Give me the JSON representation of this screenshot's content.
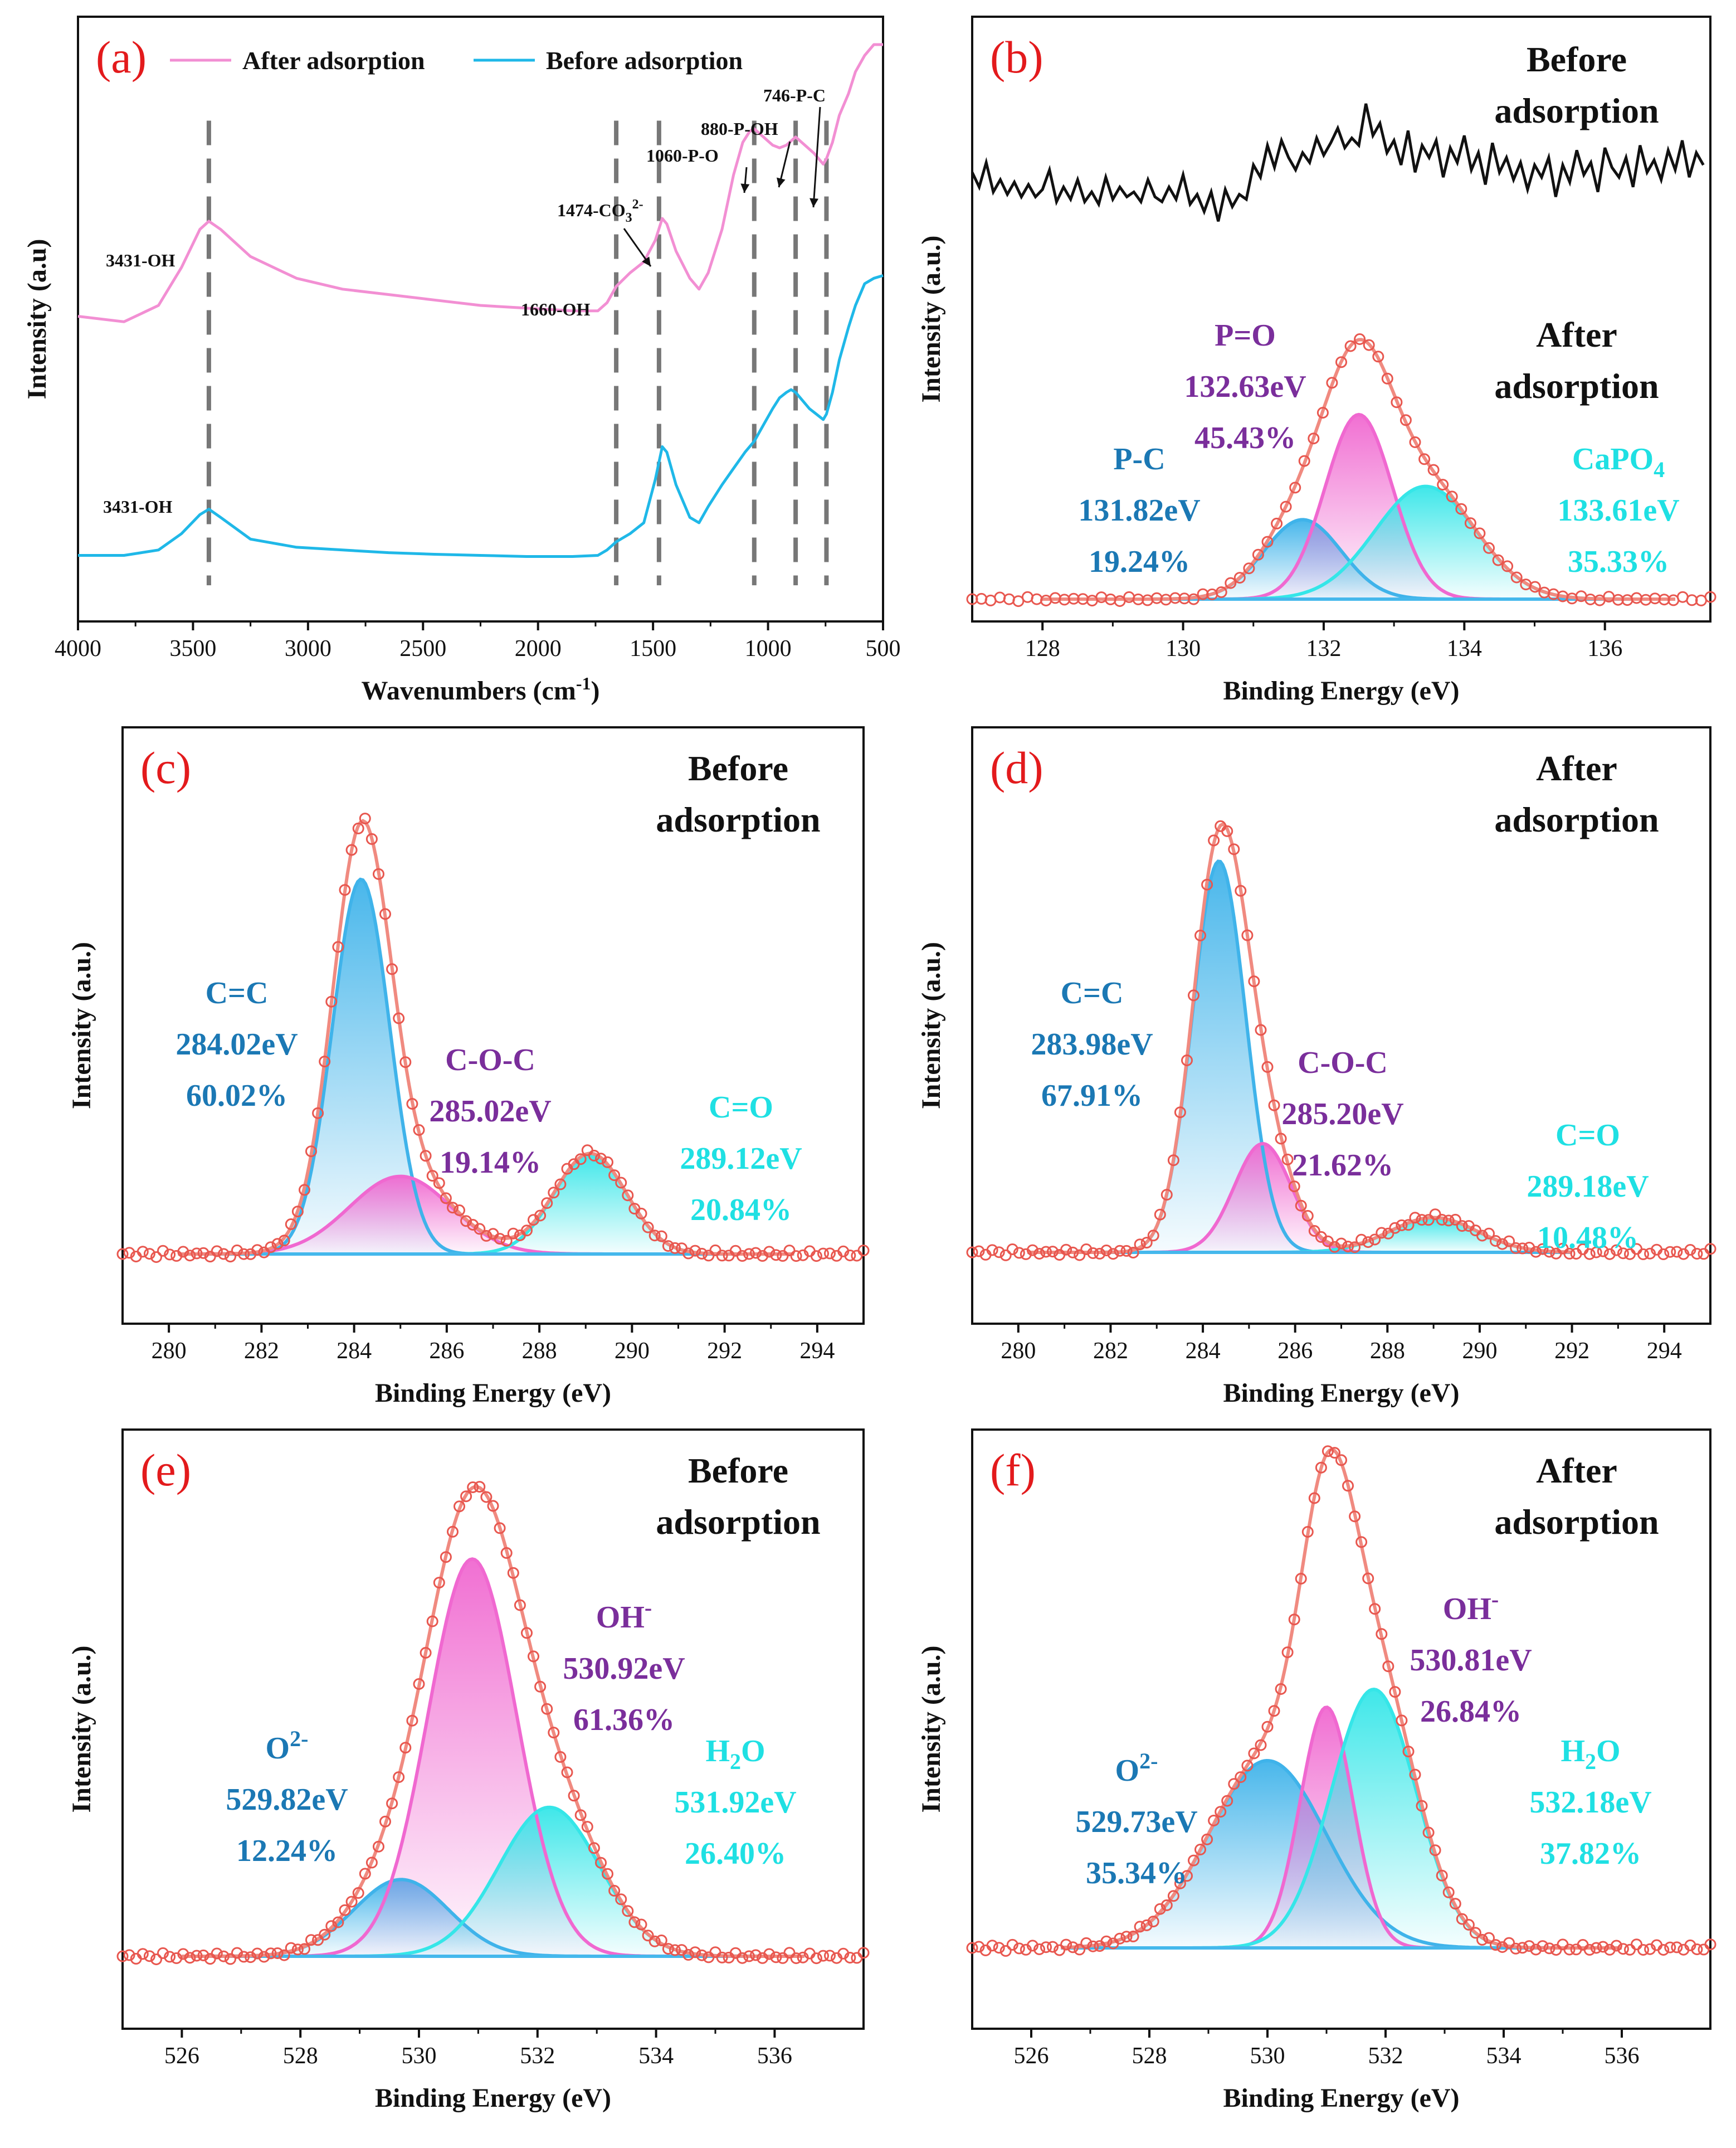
{
  "colors": {
    "panel_label": "#e31a1c",
    "envelope": "#f08a80",
    "marker": "#e8574f",
    "ftir_after": "#f28fd3",
    "ftir_before": "#1fb8e8",
    "before_raw": "#111111",
    "blue_component": "#3fb3ea",
    "pink_component": "#f068d0",
    "cyan_component": "#35e6e8",
    "blue_text": "#1b78b4",
    "purple_text": "#7a2e9b",
    "cyan_text": "#1fe0e3",
    "baseline": "#45b8ec",
    "dashed": "#777777"
  },
  "chart_data": [
    {
      "id": "a",
      "type": "line",
      "panel_label": "(a)",
      "xlabel": "Wavenumbers (cm",
      "xlabel_sup": "-1",
      "xlabel_end": ")",
      "ylabel": "Intensity (a.u)",
      "xlim": [
        4000,
        500
      ],
      "x_ticks": [
        4000,
        3500,
        3000,
        2500,
        2000,
        1500,
        1000,
        500
      ],
      "legend": [
        {
          "name": "After adsorption",
          "color": "#f28fd3"
        },
        {
          "name": "Before adsorption",
          "color": "#1fb8e8"
        }
      ],
      "series": [
        {
          "name": "After adsorption",
          "color": "#f28fd3",
          "x": [
            4000,
            3800,
            3650,
            3550,
            3470,
            3431,
            3380,
            3250,
            3050,
            2850,
            2650,
            2450,
            2250,
            2050,
            1850,
            1740,
            1700,
            1660,
            1600,
            1540,
            1490,
            1460,
            1440,
            1400,
            1340,
            1300,
            1260,
            1200,
            1150,
            1110,
            1080,
            1060,
            1020,
            980,
            950,
            920,
            880,
            840,
            800,
            780,
            760,
            746,
            720,
            690,
            650,
            620,
            580,
            540,
            500
          ],
          "y": [
            0.5,
            0.49,
            0.52,
            0.59,
            0.66,
            0.675,
            0.66,
            0.61,
            0.57,
            0.55,
            0.54,
            0.53,
            0.52,
            0.515,
            0.51,
            0.51,
            0.525,
            0.555,
            0.58,
            0.6,
            0.64,
            0.68,
            0.67,
            0.62,
            0.57,
            0.55,
            0.58,
            0.66,
            0.76,
            0.82,
            0.84,
            0.845,
            0.83,
            0.815,
            0.81,
            0.815,
            0.83,
            0.815,
            0.8,
            0.79,
            0.78,
            0.79,
            0.82,
            0.87,
            0.91,
            0.95,
            0.98,
            1.0,
            1.0
          ]
        },
        {
          "name": "Before adsorption",
          "color": "#1fb8e8",
          "x": [
            4000,
            3800,
            3650,
            3550,
            3470,
            3431,
            3380,
            3250,
            3050,
            2850,
            2650,
            2450,
            2250,
            2050,
            1850,
            1740,
            1700,
            1660,
            1600,
            1540,
            1490,
            1460,
            1440,
            1400,
            1340,
            1300,
            1260,
            1200,
            1150,
            1100,
            1060,
            1020,
            980,
            950,
            920,
            900,
            880,
            850,
            820,
            790,
            760,
            746,
            720,
            690,
            650,
            620,
            580,
            540,
            500
          ],
          "y": [
            0.06,
            0.06,
            0.07,
            0.1,
            0.135,
            0.145,
            0.13,
            0.09,
            0.075,
            0.07,
            0.065,
            0.062,
            0.06,
            0.058,
            0.058,
            0.06,
            0.07,
            0.085,
            0.1,
            0.12,
            0.2,
            0.26,
            0.25,
            0.19,
            0.13,
            0.12,
            0.15,
            0.19,
            0.22,
            0.25,
            0.27,
            0.3,
            0.33,
            0.35,
            0.36,
            0.365,
            0.36,
            0.345,
            0.33,
            0.32,
            0.31,
            0.32,
            0.36,
            0.42,
            0.48,
            0.52,
            0.56,
            0.57,
            0.575
          ]
        }
      ],
      "dashed_lines": [
        3431,
        1660,
        1474,
        1060,
        880,
        746
      ],
      "annotations": [
        {
          "text": "3431-OH",
          "x": 3431,
          "series": "After adsorption"
        },
        {
          "text": "3431-OH",
          "x": 3431,
          "series": "Before adsorption"
        },
        {
          "text": "1660-OH",
          "x": 1660
        },
        {
          "text": "1474-CO",
          "sub": "3",
          "sup": "2-",
          "x": 1474
        },
        {
          "text": "1060-P-O",
          "x": 1060
        },
        {
          "text": "880-P-OH",
          "x": 880
        },
        {
          "text": "746-P-C",
          "x": 746
        }
      ]
    },
    {
      "id": "b",
      "type": "line",
      "panel_label": "(b)",
      "xlabel": "Binding Energy (eV)",
      "ylabel": "Intensity (a.u.)",
      "xlim": [
        127,
        137.5
      ],
      "x_ticks": [
        128,
        130,
        132,
        134,
        136
      ],
      "state_before": [
        "Before",
        "adsorption"
      ],
      "state_after": [
        "After",
        "adsorption"
      ],
      "raw_before": {
        "x": [
          127.0,
          127.1,
          127.2,
          127.3,
          127.4,
          127.5,
          127.6,
          127.7,
          127.8,
          127.9,
          128.0,
          128.1,
          128.2,
          128.3,
          128.4,
          128.5,
          128.6,
          128.7,
          128.8,
          128.9,
          129.0,
          129.1,
          129.2,
          129.3,
          129.4,
          129.5,
          129.6,
          129.7,
          129.8,
          129.9,
          130.0,
          130.1,
          130.2,
          130.3,
          130.4,
          130.5,
          130.6,
          130.7,
          130.8,
          130.9,
          131.0,
          131.1,
          131.2,
          131.3,
          131.4,
          131.5,
          131.6,
          131.7,
          131.8,
          131.9,
          132.0,
          132.1,
          132.2,
          132.3,
          132.4,
          132.5,
          132.6,
          132.7,
          132.8,
          132.9,
          133.0,
          133.1,
          133.2,
          133.3,
          133.4,
          133.5,
          133.6,
          133.7,
          133.8,
          133.9,
          134.0,
          134.1,
          134.2,
          134.3,
          134.4,
          134.5,
          134.6,
          134.7,
          134.8,
          134.9,
          135.0,
          135.1,
          135.2,
          135.3,
          135.4,
          135.5,
          135.6,
          135.7,
          135.8,
          135.9,
          136.0,
          136.1,
          136.2,
          136.3,
          136.4,
          136.5,
          136.6,
          136.7,
          136.8,
          136.9,
          137.0,
          137.1,
          137.2,
          137.3,
          137.4
        ],
        "y": [
          0.82,
          0.76,
          0.86,
          0.74,
          0.79,
          0.73,
          0.78,
          0.72,
          0.77,
          0.72,
          0.75,
          0.83,
          0.7,
          0.76,
          0.71,
          0.79,
          0.7,
          0.74,
          0.69,
          0.8,
          0.71,
          0.76,
          0.72,
          0.74,
          0.7,
          0.79,
          0.72,
          0.7,
          0.76,
          0.71,
          0.81,
          0.69,
          0.73,
          0.66,
          0.74,
          0.62,
          0.75,
          0.68,
          0.73,
          0.71,
          0.85,
          0.8,
          0.93,
          0.84,
          0.95,
          0.88,
          0.83,
          0.9,
          0.86,
          0.96,
          0.89,
          0.94,
          1.0,
          0.92,
          0.96,
          0.93,
          1.1,
          0.97,
          1.02,
          0.9,
          0.95,
          0.85,
          0.99,
          0.82,
          0.93,
          0.88,
          0.95,
          0.8,
          0.92,
          0.86,
          0.97,
          0.83,
          0.9,
          0.77,
          0.94,
          0.82,
          0.88,
          0.79,
          0.86,
          0.75,
          0.85,
          0.8,
          0.88,
          0.72,
          0.85,
          0.78,
          0.91,
          0.81,
          0.86,
          0.74,
          0.92,
          0.84,
          0.8,
          0.88,
          0.76,
          0.93,
          0.82,
          0.87,
          0.79,
          0.91,
          0.83,
          0.95,
          0.8,
          0.9,
          0.85
        ]
      },
      "background": 0.0,
      "peaks": [
        {
          "name": "P-C",
          "center": 131.82,
          "area_pct": 19.24,
          "label_lines": [
            "P-C",
            "131.82eV",
            "19.24%"
          ],
          "color": "blue",
          "fit_center": 131.7,
          "amp": 0.31,
          "sigma": 0.55
        },
        {
          "name": "P=O",
          "center": 132.63,
          "area_pct": 45.43,
          "label_lines": [
            "P=O",
            "132.63eV",
            "45.43%"
          ],
          "color": "pink",
          "fit_center": 132.5,
          "amp": 0.72,
          "sigma": 0.48
        },
        {
          "name": "CaPO4",
          "center": 133.61,
          "area_pct": 35.33,
          "label_lines": [
            "CaPO",
            "133.61eV",
            "35.33%"
          ],
          "label_sub": "4",
          "color": "cyan",
          "fit_center": 133.45,
          "amp": 0.44,
          "sigma": 0.72
        }
      ]
    },
    {
      "id": "c",
      "type": "line",
      "panel_label": "(c)",
      "xlabel": "Binding Energy (eV)",
      "ylabel": "Intensity (a.u.)",
      "xlim": [
        279,
        295
      ],
      "x_ticks": [
        280,
        282,
        284,
        286,
        288,
        290,
        292,
        294
      ],
      "state": [
        "Before",
        "adsorption"
      ],
      "peaks": [
        {
          "name": "C=C",
          "center": 284.02,
          "area_pct": 60.02,
          "label_lines": [
            "C=C",
            "284.02eV",
            "60.02%"
          ],
          "color": "blue",
          "fit_center": 284.15,
          "amp": 0.82,
          "sigma": 0.62
        },
        {
          "name": "C-O-C",
          "center": 285.02,
          "area_pct": 19.14,
          "label_lines": [
            "C-O-C",
            "285.02eV",
            "19.14%"
          ],
          "color": "pink",
          "fit_center": 285.0,
          "amp": 0.17,
          "sigma": 1.1
        },
        {
          "name": "C=O",
          "center": 289.12,
          "area_pct": 20.84,
          "label_lines": [
            "C=O",
            "289.12eV",
            "20.84%"
          ],
          "color": "cyan",
          "fit_center": 289.1,
          "amp": 0.22,
          "sigma": 0.78
        }
      ]
    },
    {
      "id": "d",
      "type": "line",
      "panel_label": "(d)",
      "xlabel": "Binding Energy (eV)",
      "ylabel": "Intensity (a.u.)",
      "xlim": [
        279,
        295
      ],
      "x_ticks": [
        280,
        282,
        284,
        286,
        288,
        290,
        292,
        294
      ],
      "state": [
        "After",
        "adsorption"
      ],
      "peaks": [
        {
          "name": "C=C",
          "center": 283.98,
          "area_pct": 67.91,
          "label_lines": [
            "C=C",
            "283.98eV",
            "67.91%"
          ],
          "color": "blue",
          "fit_center": 284.35,
          "amp": 0.9,
          "sigma": 0.58
        },
        {
          "name": "C-O-C",
          "center": 285.2,
          "area_pct": 21.62,
          "label_lines": [
            "C-O-C",
            "285.20eV",
            "21.62%"
          ],
          "color": "pink",
          "fit_center": 285.3,
          "amp": 0.25,
          "sigma": 0.62
        },
        {
          "name": "C=O",
          "center": 289.18,
          "area_pct": 10.48,
          "label_lines": [
            "C=O",
            "289.18eV",
            "10.48%"
          ],
          "color": "cyan",
          "fit_center": 289.0,
          "amp": 0.08,
          "sigma": 0.95
        }
      ]
    },
    {
      "id": "e",
      "type": "line",
      "panel_label": "(e)",
      "xlabel": "Binding Energy (eV)",
      "ylabel": "Intensity (a.u.)",
      "xlim": [
        525,
        537.5
      ],
      "x_ticks": [
        526,
        528,
        530,
        532,
        534,
        536
      ],
      "state": [
        "Before",
        "adsorption"
      ],
      "peaks": [
        {
          "name": "O2-",
          "center": 529.82,
          "area_pct": 12.24,
          "label_lines": [
            "O",
            "529.82eV",
            "12.24%"
          ],
          "label_sup": "2-",
          "color": "blue",
          "fit_center": 529.7,
          "amp": 0.17,
          "sigma": 0.8
        },
        {
          "name": "OH-",
          "center": 530.92,
          "area_pct": 61.36,
          "label_lines": [
            "OH",
            "530.92eV",
            "61.36%"
          ],
          "label_sup": "-",
          "color": "pink",
          "fit_center": 530.9,
          "amp": 0.88,
          "sigma": 0.75
        },
        {
          "name": "H2O",
          "center": 531.92,
          "area_pct": 26.4,
          "label_lines": [
            "H",
            "531.92eV",
            "26.40%"
          ],
          "label_sub": "2",
          "label_tail": "O",
          "color": "cyan",
          "fit_center": 532.2,
          "amp": 0.33,
          "sigma": 0.85
        }
      ]
    },
    {
      "id": "f",
      "type": "line",
      "panel_label": "(f)",
      "xlabel": "Binding Energy (eV)",
      "ylabel": "Intensity (a.u.)",
      "xlim": [
        525,
        537.5
      ],
      "x_ticks": [
        526,
        528,
        530,
        532,
        534,
        536
      ],
      "state": [
        "After",
        "adsorption"
      ],
      "peaks": [
        {
          "name": "O2-",
          "center": 529.73,
          "area_pct": 35.34,
          "label_lines": [
            "O",
            "529.73eV",
            "35.34%"
          ],
          "label_sup": "2-",
          "color": "blue",
          "fit_center": 530.0,
          "amp": 0.42,
          "sigma": 1.0
        },
        {
          "name": "OH-",
          "center": 530.81,
          "area_pct": 26.84,
          "label_lines": [
            "OH",
            "530.81eV",
            "26.84%"
          ],
          "label_sup": "-",
          "color": "pink",
          "fit_center": 531.0,
          "amp": 0.54,
          "sigma": 0.45
        },
        {
          "name": "H2O",
          "center": 532.18,
          "area_pct": 37.82,
          "label_lines": [
            "H",
            "532.18eV",
            "37.82%"
          ],
          "label_sub": "2",
          "label_tail": "O",
          "color": "cyan",
          "fit_center": 531.8,
          "amp": 0.58,
          "sigma": 0.72
        }
      ]
    }
  ]
}
